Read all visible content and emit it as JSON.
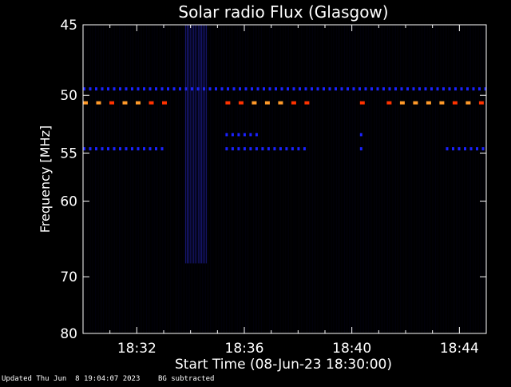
{
  "footer": {
    "updated": "Updated Thu Jun  8 19:04:07 2023",
    "note": "BG subtracted"
  },
  "chart_data": {
    "type": "heatmap",
    "title": "Solar radio Flux (Glasgow)",
    "xlabel": "Start Time (08-Jun-23 18:30:00)",
    "ylabel": "Frequency [MHz]",
    "x_unit": "minutes after 18:30",
    "xlim": [
      0,
      15
    ],
    "x_ticks": [
      {
        "value": 2,
        "label": "18:32"
      },
      {
        "value": 6,
        "label": "18:36"
      },
      {
        "value": 10,
        "label": "18:40"
      },
      {
        "value": 14,
        "label": "18:44"
      }
    ],
    "y_unit": "MHz",
    "y_scale": "reciprocal (frequency decreases upward)",
    "ylim": [
      80,
      45
    ],
    "y_ticks": [
      45,
      50,
      55,
      60,
      70,
      80
    ],
    "colors": {
      "background": "#000000",
      "low": "#0a0a5a",
      "medium": "#1a22ff",
      "high": "#ff3300",
      "peak": "#ff9a2a"
    },
    "features": [
      {
        "name": "narrowband-50.6",
        "freq_mhz": 50.6,
        "segments": [
          [
            0.0,
            3.0
          ],
          [
            5.3,
            8.4
          ],
          [
            10.3,
            10.5
          ],
          [
            11.3,
            15.0
          ]
        ],
        "level": "high"
      },
      {
        "name": "narrowband-49.5",
        "freq_mhz": 49.5,
        "segments": [
          [
            0.0,
            15.0
          ]
        ],
        "level": "medium"
      },
      {
        "name": "narrowband-53.3",
        "freq_mhz": 53.3,
        "segments": [
          [
            5.3,
            6.6
          ],
          [
            10.3,
            10.5
          ]
        ],
        "level": "medium"
      },
      {
        "name": "narrowband-54.6",
        "freq_mhz": 54.6,
        "segments": [
          [
            0.0,
            3.0
          ],
          [
            5.3,
            8.4
          ],
          [
            10.3,
            10.5
          ],
          [
            13.5,
            15.0
          ]
        ],
        "level": "medium"
      },
      {
        "name": "broadband-noise",
        "freq_range_mhz": [
          45,
          68
        ],
        "time_range": [
          3.8,
          4.6
        ],
        "level": "low"
      }
    ]
  }
}
